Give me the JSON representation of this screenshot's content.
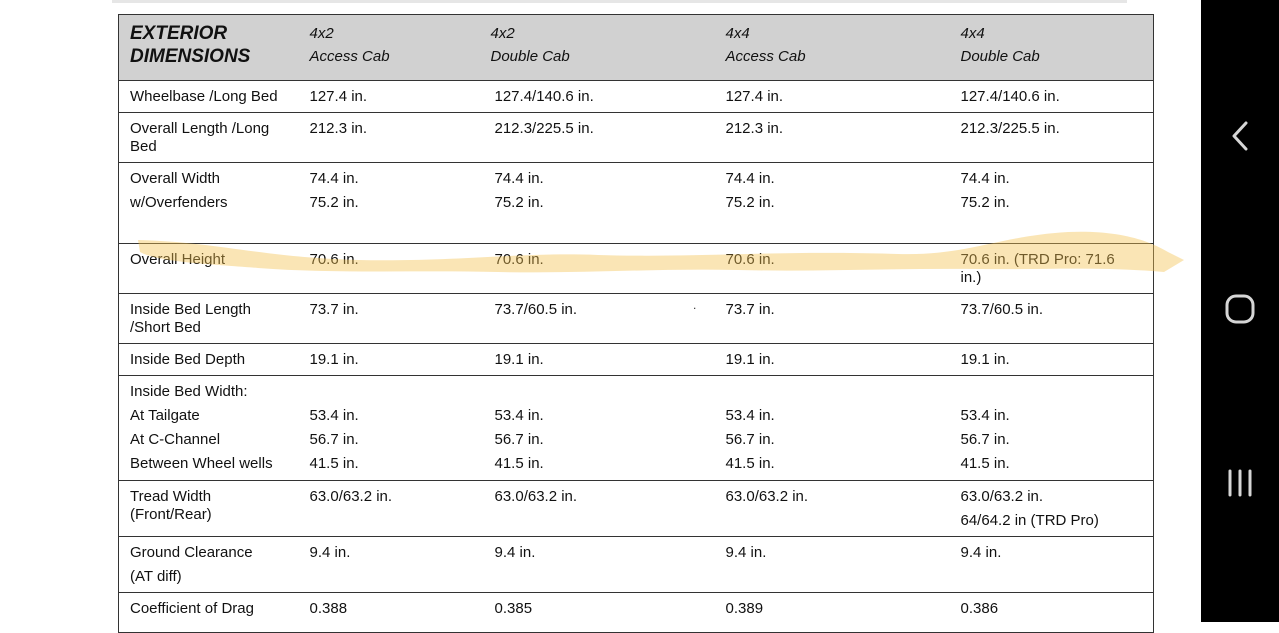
{
  "table": {
    "title_line1": "EXTERIOR",
    "title_line2": "DIMENSIONS",
    "columns": [
      {
        "drive": "4x2",
        "cab": "Access Cab"
      },
      {
        "drive": "4x2",
        "cab": "Double Cab"
      },
      {
        "drive": "4x4",
        "cab": "Access Cab"
      },
      {
        "drive": "4x4",
        "cab": "Double Cab"
      }
    ],
    "rows": {
      "wheelbase": {
        "label": "Wheelbase /Long Bed",
        "v": [
          "127.4 in.",
          "127.4/140.6 in.",
          "127.4 in.",
          "127.4/140.6 in."
        ]
      },
      "overall_length": {
        "label_1": "Overall Length /Long",
        "label_2": "Bed",
        "v": [
          "212.3 in.",
          "212.3/225.5 in.",
          "212.3 in.",
          "212.3/225.5 in."
        ]
      },
      "overall_width": {
        "label_1": "Overall Width",
        "label_2": "w/Overfenders",
        "v1": [
          "74.4 in.",
          "74.4 in.",
          "74.4 in.",
          "74.4 in."
        ],
        "v2": [
          "75.2 in.",
          "75.2 in.",
          "75.2 in.",
          "75.2 in."
        ]
      },
      "overall_height": {
        "label": "Overall Height",
        "v": [
          "70.6 in.",
          "70.6 in.",
          "70.6 in."
        ],
        "v4_1": "70.6 in. (TRD Pro: 71.6",
        "v4_2": "in.)"
      },
      "inside_bed_length": {
        "label_1": "Inside Bed Length",
        "label_2": "/Short Bed",
        "v": [
          "73.7 in.",
          "73.7/60.5 in.",
          "73.7 in.",
          "73.7/60.5 in."
        ],
        "stray_mark": "."
      },
      "inside_bed_depth": {
        "label": "Inside Bed Depth",
        "v": [
          "19.1 in.",
          "19.1 in.",
          "19.1 in.",
          "19.1 in."
        ]
      },
      "inside_bed_width": {
        "label": "Inside Bed Width:",
        "sub": [
          {
            "label": "At Tailgate",
            "v": [
              "53.4 in.",
              "53.4 in.",
              "53.4 in.",
              "53.4 in."
            ]
          },
          {
            "label": "At C-Channel",
            "v": [
              "56.7 in.",
              "56.7 in.",
              "56.7 in.",
              "56.7 in."
            ]
          },
          {
            "label": "Between Wheel wells",
            "v": [
              "41.5 in.",
              "41.5 in.",
              "41.5 in.",
              "41.5 in."
            ]
          }
        ]
      },
      "tread_width": {
        "label_1": "Tread Width",
        "label_2": "(Front/Rear)",
        "v": [
          "63.0/63.2 in.",
          "63.0/63.2 in.",
          "63.0/63.2 in.",
          "63.0/63.2 in."
        ],
        "v4_extra": "64/64.2 in (TRD Pro)"
      },
      "ground_clearance": {
        "label_1": "Ground Clearance",
        "label_2": "(AT diff)",
        "v": [
          "9.4 in.",
          "9.4 in.",
          "9.4 in.",
          "9.4 in."
        ]
      },
      "drag": {
        "label": "Coefficient of Drag",
        "v": [
          "0.388",
          "0.385",
          "0.389",
          "0.386"
        ]
      }
    }
  },
  "highlight": {
    "color": "#f2c14e",
    "target_row": "Overall Height"
  },
  "nav": {
    "icons": [
      "back-icon",
      "home-icon",
      "recent-apps-icon"
    ]
  }
}
